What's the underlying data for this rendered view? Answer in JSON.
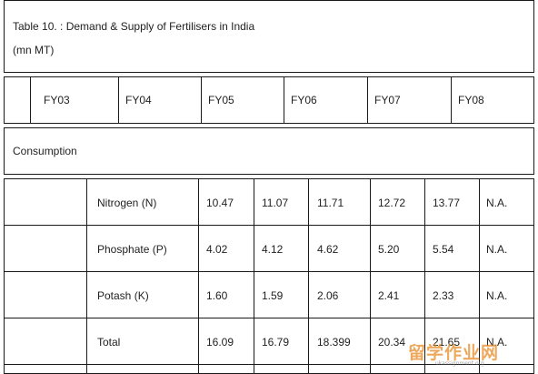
{
  "table": {
    "title": "Table 10. : Demand & Supply of Fertilisers in India",
    "unit": "(mn MT)",
    "years": [
      "FY03",
      "FY04",
      "FY05",
      "FY06",
      "FY07",
      "FY08"
    ],
    "section": "Consumption",
    "rows": [
      {
        "label": "Nitrogen (N)",
        "values": [
          "10.47",
          "11.07",
          "11.71",
          "12.72",
          "13.77",
          "N.A."
        ]
      },
      {
        "label": "Phosphate (P)",
        "values": [
          "4.02",
          "4.12",
          "4.62",
          "5.20",
          "5.54",
          "N.A."
        ]
      },
      {
        "label": "Potash (K)",
        "values": [
          "1.60",
          "1.59",
          "2.06",
          "2.41",
          "2.33",
          "N.A."
        ]
      },
      {
        "label": "Total",
        "values": [
          "16.09",
          "16.79",
          "18.399",
          "20.34",
          "21.65",
          "N.A."
        ]
      }
    ]
  },
  "watermark": {
    "main": "留学作业网",
    "sub": "ukassignment.org"
  }
}
